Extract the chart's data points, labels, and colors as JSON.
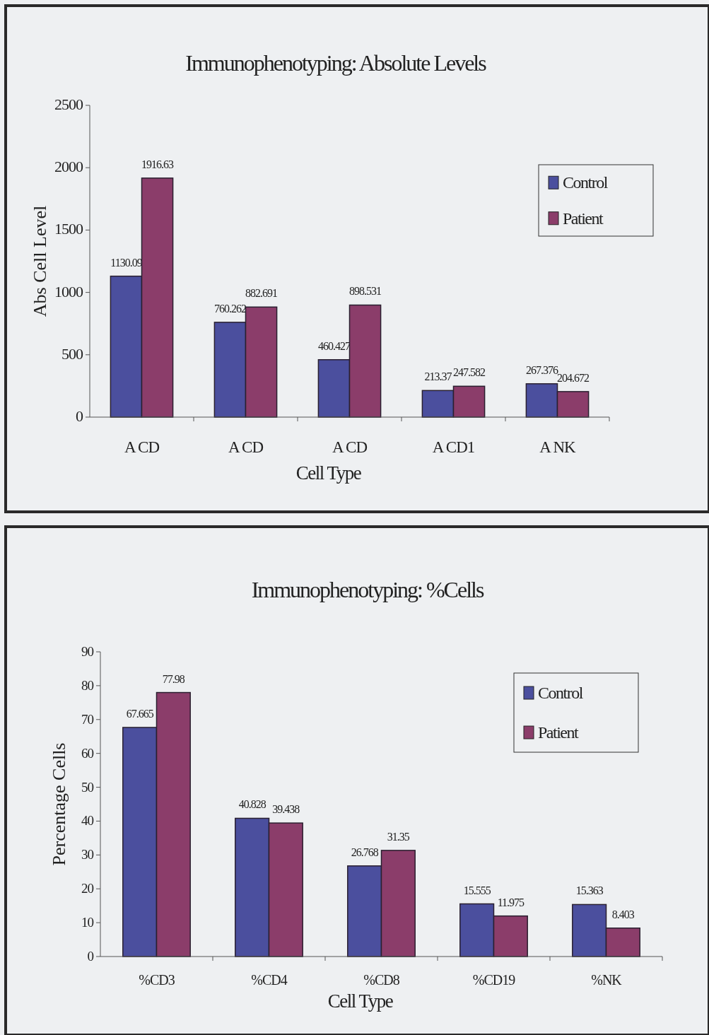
{
  "chart_data": [
    {
      "type": "bar",
      "title": "Immunophenotyping: Absolute Levels",
      "xlabel": "Cell Type",
      "ylabel": "Abs Cell Level",
      "categories": [
        "A CD",
        "A CD",
        "A CD",
        "A CD1",
        "A NK"
      ],
      "series": [
        {
          "name": "Control",
          "color": "#4b4f9e",
          "values": [
            1130.09,
            760.262,
            460.427,
            213.37,
            267.376
          ]
        },
        {
          "name": "Patient",
          "color": "#8b3d6a",
          "values": [
            1916.63,
            882.691,
            898.531,
            247.582,
            204.672
          ]
        }
      ],
      "ylim": [
        0,
        2500
      ],
      "yticks": [
        0,
        500,
        1000,
        1500,
        2000,
        2500
      ],
      "grid": false,
      "legend": "top right",
      "data_labels": true
    },
    {
      "type": "bar",
      "title": "Immunophenotyping: %Cells",
      "xlabel": "Cell Type",
      "ylabel": "Percentage Cells",
      "categories": [
        "%CD3",
        "%CD4",
        "%CD8",
        "%CD19",
        "%NK"
      ],
      "series": [
        {
          "name": "Control",
          "color": "#4b4f9e",
          "values": [
            67.665,
            40.828,
            26.768,
            15.555,
            15.363
          ]
        },
        {
          "name": "Patient",
          "color": "#8b3d6a",
          "values": [
            77.98,
            39.438,
            31.35,
            11.975,
            8.403
          ]
        }
      ],
      "ylim": [
        0,
        90
      ],
      "yticks": [
        0,
        10,
        20,
        30,
        40,
        50,
        60,
        70,
        80,
        90
      ],
      "grid": false,
      "legend": "top right",
      "data_labels": true
    }
  ]
}
